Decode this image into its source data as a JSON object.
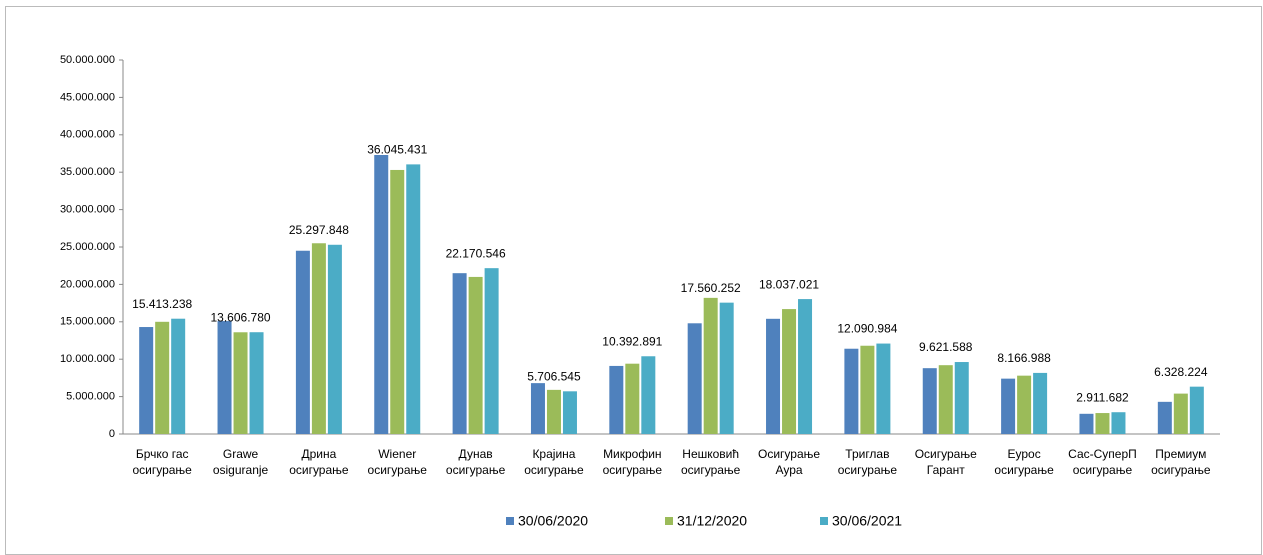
{
  "chart_data": {
    "type": "bar",
    "categories": [
      "Брчко гас осигурање",
      "Grawe osiguranje",
      "Дрина осигурање",
      "Wiener осигурање",
      "Дунав осигурање",
      "Крајина осигурање",
      "Микрофин осигурање",
      "Нешковић осигурање",
      "Осигурање Аура",
      "Триглав осигурање",
      "Осигурање Гарант",
      "Еурос осигурање",
      "Сас-СуперП осигурање",
      "Премиум осигурање"
    ],
    "series": [
      {
        "name": "30/06/2020",
        "color": "#4f81bd",
        "values": [
          14300000,
          15100000,
          24500000,
          37300000,
          21500000,
          6800000,
          9100000,
          14800000,
          15400000,
          11400000,
          8800000,
          7400000,
          2700000,
          4300000
        ]
      },
      {
        "name": "31/12/2020",
        "color": "#9bbb59",
        "values": [
          15000000,
          13600000,
          25500000,
          35300000,
          21000000,
          5900000,
          9400000,
          18200000,
          16700000,
          11800000,
          9200000,
          7800000,
          2800000,
          5400000
        ]
      },
      {
        "name": "30/06/2021",
        "color": "#4bacc6",
        "values": [
          15413238,
          13606780,
          25297848,
          36045431,
          22170546,
          5706545,
          10392891,
          17560252,
          18037021,
          12090984,
          9621588,
          8166988,
          2911682,
          6328224
        ],
        "value_labels": [
          "15.413.238",
          "13.606.780",
          "25.297.848",
          "36.045.431",
          "22.170.546",
          "5.706.545",
          "10.392.891",
          "17.560.252",
          "18.037.021",
          "12.090.984",
          "9.621.588",
          "8.166.988",
          "2.911.682",
          "6.328.224"
        ]
      }
    ],
    "ylim": [
      0,
      50000000
    ],
    "yticks": [
      0,
      {
        "value": 5000000,
        "label": "5.000.000"
      },
      {
        "value": 10000000,
        "label": "10.000.000"
      },
      {
        "value": 15000000,
        "label": "15.000.000"
      },
      {
        "value": 20000000,
        "label": "20.000.000"
      },
      {
        "value": 25000000,
        "label": "25.000.000"
      },
      {
        "value": 30000000,
        "label": "30.000.000"
      },
      {
        "value": 35000000,
        "label": "35.000.000"
      },
      {
        "value": 40000000,
        "label": "40.000.000"
      },
      {
        "value": 45000000,
        "label": "45.000.000"
      },
      {
        "value": 50000000,
        "label": "50.000.000"
      }
    ],
    "grid": false,
    "legend": "bottom"
  }
}
